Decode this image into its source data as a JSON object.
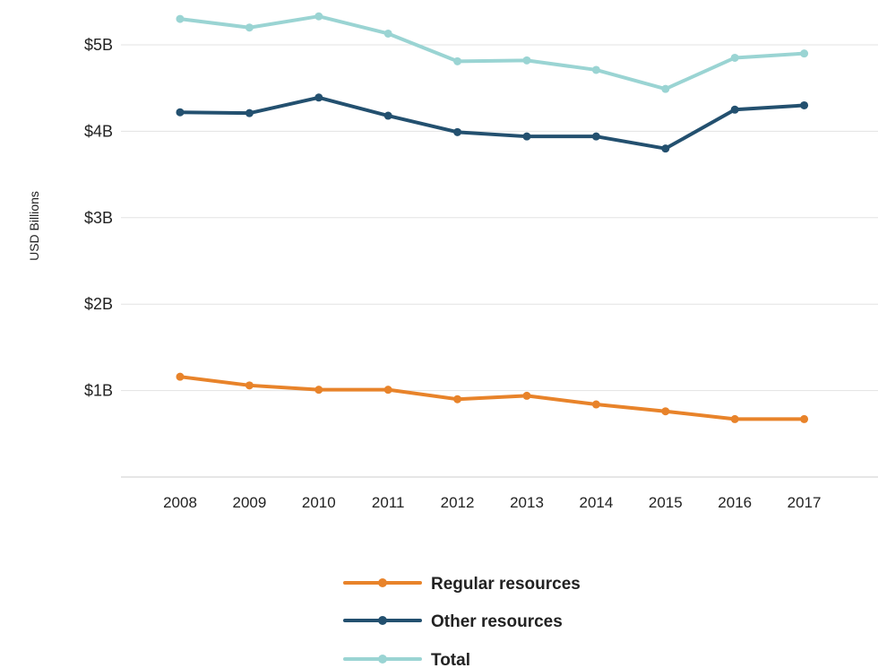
{
  "chart_data": {
    "type": "line",
    "title": "",
    "xlabel": "",
    "ylabel": "USD Billions",
    "categories": [
      "2008",
      "2009",
      "2010",
      "2011",
      "2012",
      "2013",
      "2014",
      "2015",
      "2016",
      "2017"
    ],
    "ylim": [
      0,
      5.3
    ],
    "y_ticks": [
      {
        "value": 1,
        "label": "$1B"
      },
      {
        "value": 2,
        "label": "$2B"
      },
      {
        "value": 3,
        "label": "$3B"
      },
      {
        "value": 4,
        "label": "$4B"
      },
      {
        "value": 5,
        "label": "$5B"
      }
    ],
    "grid": true,
    "legend_position": "bottom",
    "series": [
      {
        "name": "Regular resources",
        "color": "#E8832A",
        "values": [
          1.16,
          1.06,
          1.01,
          1.01,
          0.9,
          0.94,
          0.84,
          0.76,
          0.67,
          0.67
        ]
      },
      {
        "name": "Other resources",
        "color": "#23506F",
        "values": [
          4.22,
          4.21,
          4.39,
          4.18,
          3.99,
          3.94,
          3.94,
          3.8,
          4.25,
          4.3
        ]
      },
      {
        "name": "Total",
        "color": "#9AD4D3",
        "values": [
          5.3,
          5.2,
          5.33,
          5.13,
          4.81,
          4.82,
          4.71,
          4.49,
          4.85,
          4.9
        ]
      }
    ]
  }
}
